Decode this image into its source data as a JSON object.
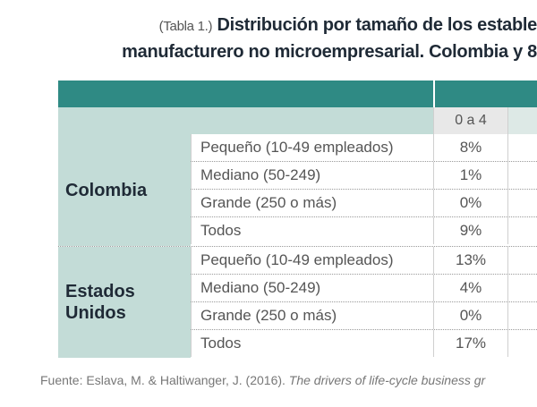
{
  "title": {
    "prefix": "(Tabla 1.)",
    "line1": "Distribución por tamaño de los estable",
    "line2": "manufacturero no microempresarial. Colombia y 8"
  },
  "table": {
    "column_header": "0 a 4",
    "groups": [
      {
        "country": "Colombia",
        "rows": [
          {
            "label": "Pequeño (10-49 empleados)",
            "value": "8%"
          },
          {
            "label": "Mediano (50-249)",
            "value": "1%"
          },
          {
            "label": "Grande (250 o más)",
            "value": "0%"
          },
          {
            "label": "Todos",
            "value": "9%"
          }
        ]
      },
      {
        "country_line1": "Estados",
        "country_line2": "Unidos",
        "rows": [
          {
            "label": "Pequeño (10-49 empleados)",
            "value": "13%"
          },
          {
            "label": "Mediano (50-249)",
            "value": "4%"
          },
          {
            "label": "Grande (250 o más)",
            "value": "0%"
          },
          {
            "label": "Todos",
            "value": "17%"
          }
        ]
      }
    ]
  },
  "source": {
    "text": "Fuente: Eslava, M. & Haltiwanger, J. (2016). ",
    "italic": "The drivers of life-cycle business gr"
  },
  "colors": {
    "teal_header": "#2f8a84",
    "light_teal": "#c3dcd7",
    "column_header_bg": "#e8e8e8"
  }
}
